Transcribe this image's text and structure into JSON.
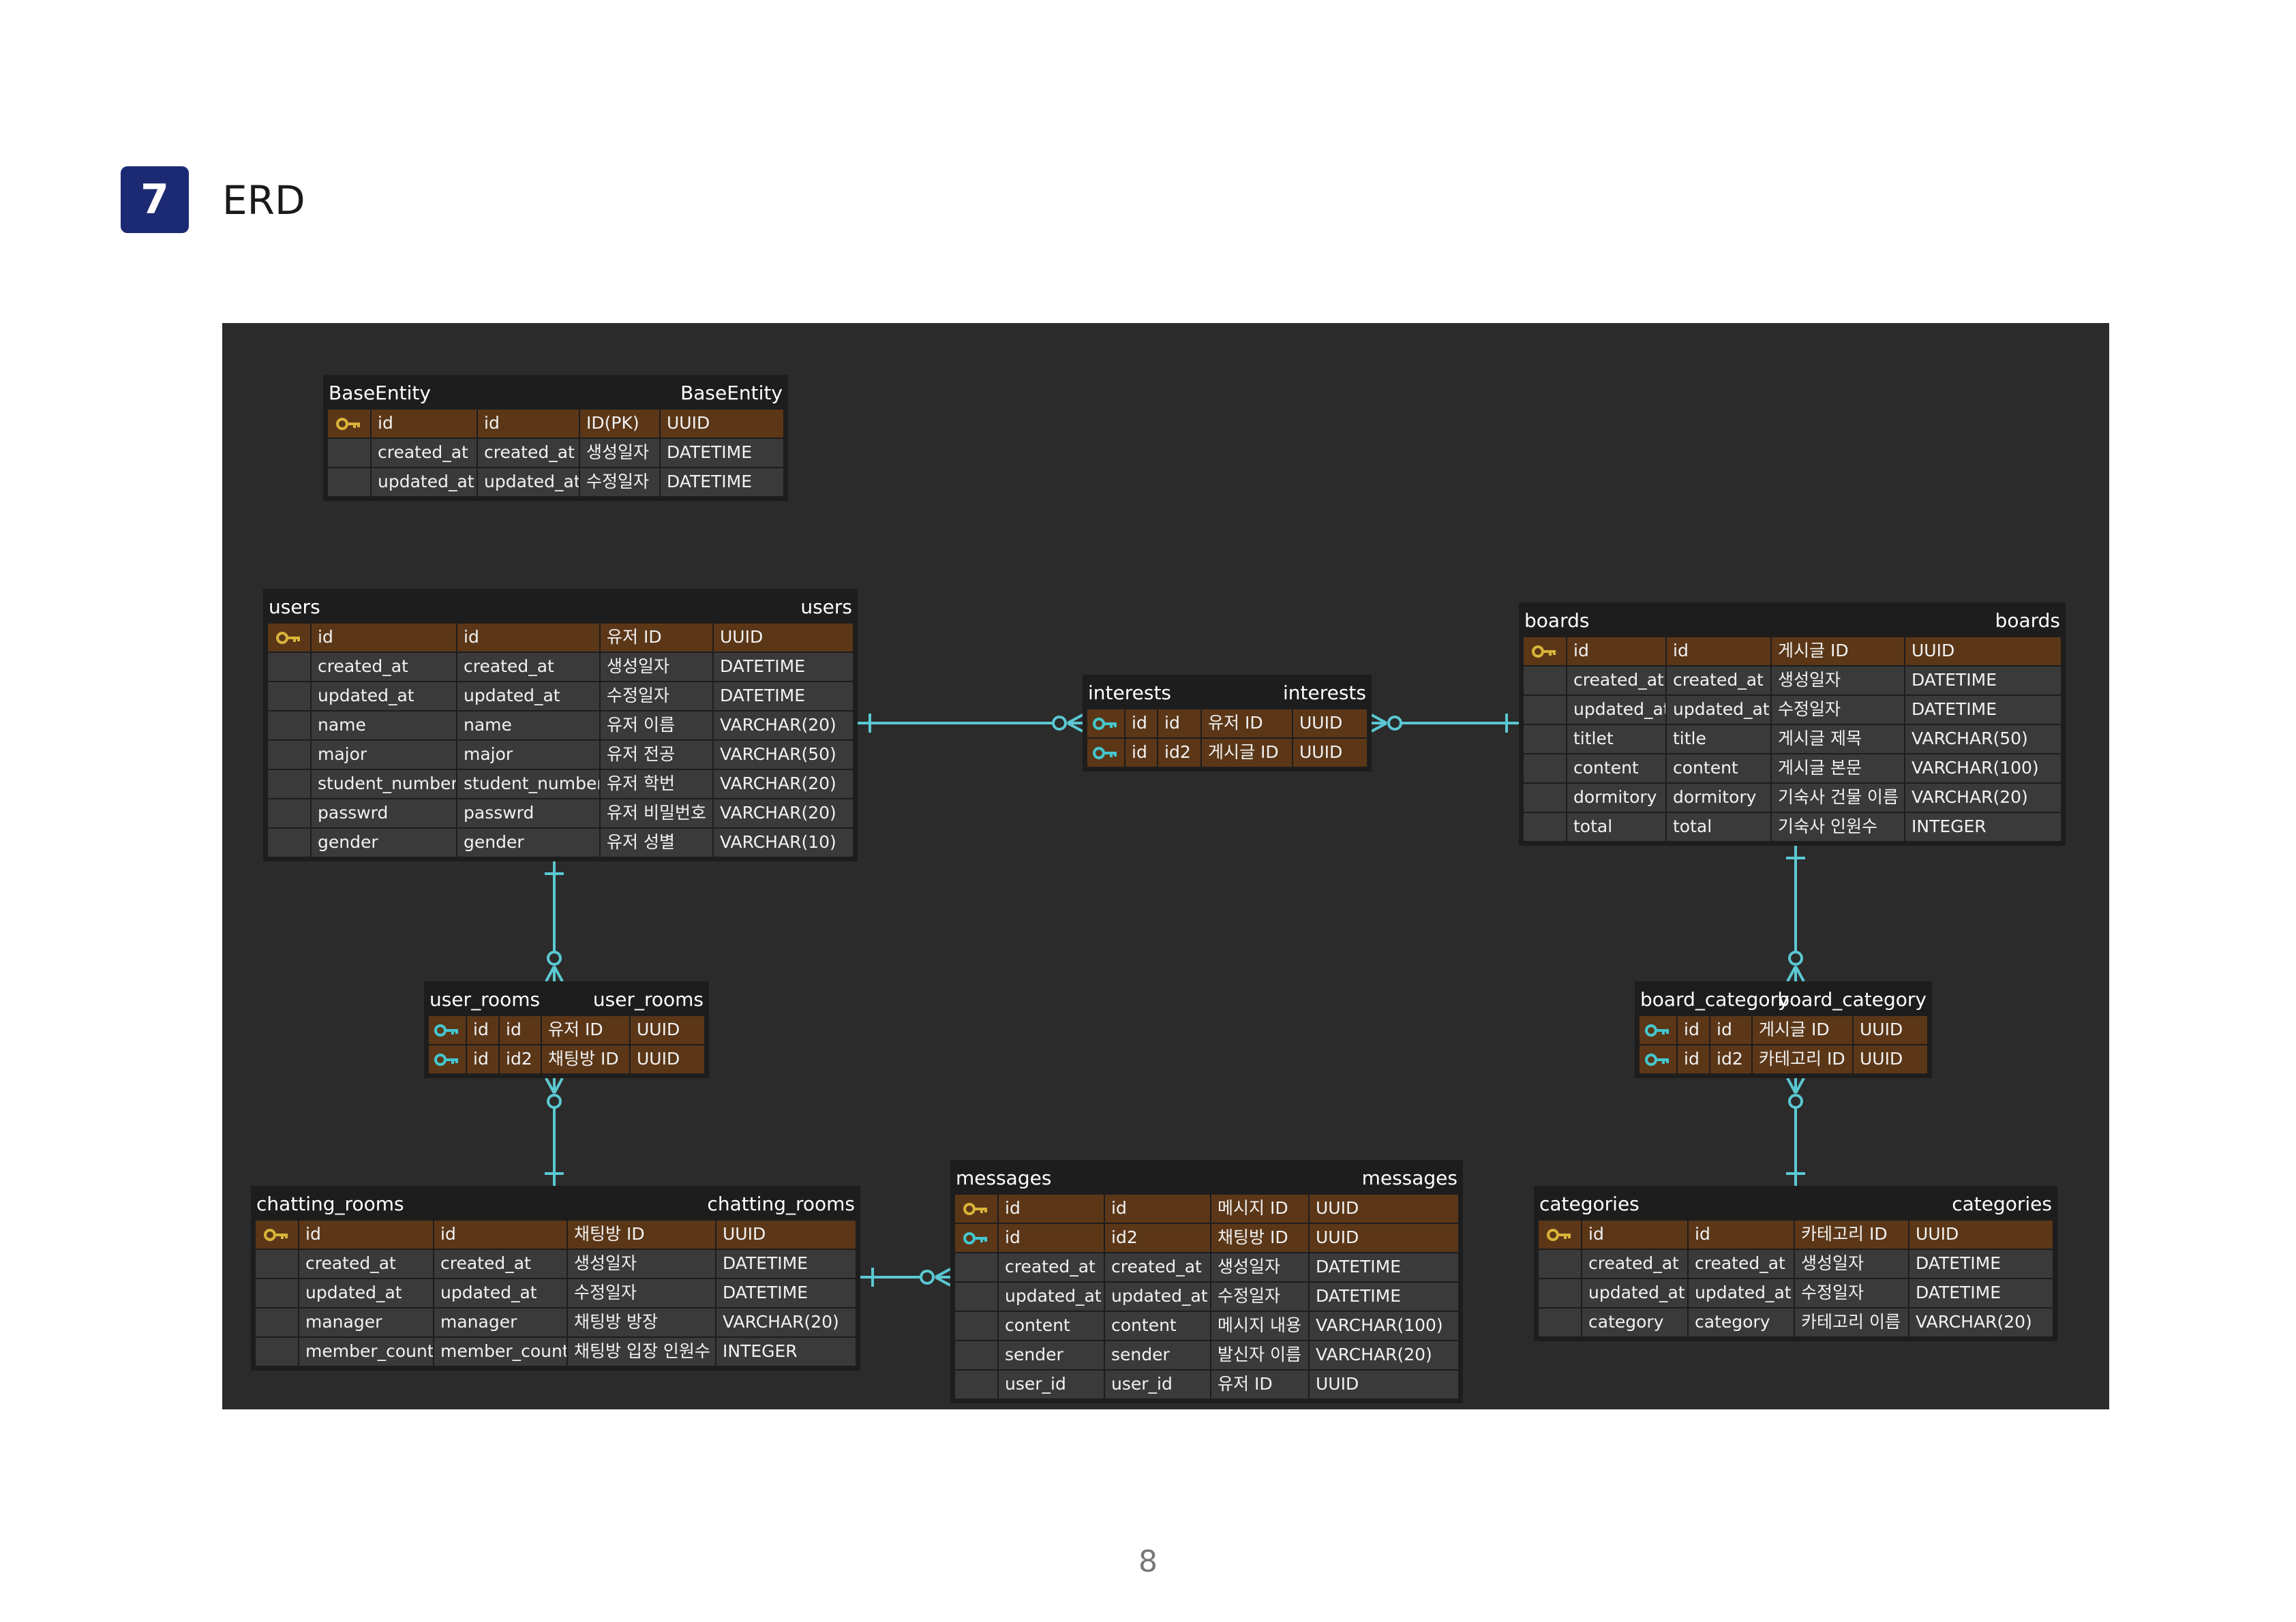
{
  "section": {
    "number": "7",
    "title": "ERD"
  },
  "page_number": "8",
  "colors": {
    "pk_row": "#5b3718",
    "row": "#3a3a3a",
    "canvas": "#2b2b2b",
    "connector": "#5bc8d2",
    "key_primary": "#d9b43a",
    "key_foreign": "#44c7cf",
    "badge": "#1c2a73"
  },
  "icons": {
    "primary_key": "key-icon-gold",
    "foreign_key": "key-icon-teal"
  },
  "tables": [
    {
      "name": "BaseEntity",
      "title_left": "BaseEntity",
      "title_right": "BaseEntity",
      "rows": [
        {
          "key": "primary",
          "cells": [
            "id",
            "id",
            "ID(PK)",
            "UUID"
          ]
        },
        {
          "key": "",
          "cells": [
            "created_at",
            "created_at",
            "생성일자",
            "DATETIME"
          ]
        },
        {
          "key": "",
          "cells": [
            "updated_at",
            "updated_at",
            "수정일자",
            "DATETIME"
          ]
        }
      ]
    },
    {
      "name": "users",
      "title_left": "users",
      "title_right": "users",
      "rows": [
        {
          "key": "primary",
          "cells": [
            "id",
            "id",
            "유저 ID",
            "UUID"
          ]
        },
        {
          "key": "",
          "cells": [
            "created_at",
            "created_at",
            "생성일자",
            "DATETIME"
          ]
        },
        {
          "key": "",
          "cells": [
            "updated_at",
            "updated_at",
            "수정일자",
            "DATETIME"
          ]
        },
        {
          "key": "",
          "cells": [
            "name",
            "name",
            "유저 이름",
            "VARCHAR(20)"
          ]
        },
        {
          "key": "",
          "cells": [
            "major",
            "major",
            "유저 전공",
            "VARCHAR(50)"
          ]
        },
        {
          "key": "",
          "cells": [
            "student_number",
            "student_number",
            "유저 학번",
            "VARCHAR(20)"
          ]
        },
        {
          "key": "",
          "cells": [
            "passwrd",
            "passwrd",
            "유저 비밀번호",
            "VARCHAR(20)"
          ]
        },
        {
          "key": "",
          "cells": [
            "gender",
            "gender",
            "유저 성별",
            "VARCHAR(10)"
          ]
        }
      ]
    },
    {
      "name": "interests",
      "title_left": "interests",
      "title_right": "interests",
      "rows": [
        {
          "key": "foreign",
          "cells": [
            "id",
            "id",
            "유저 ID",
            "UUID"
          ]
        },
        {
          "key": "foreign",
          "cells": [
            "id",
            "id2",
            "게시글 ID",
            "UUID"
          ]
        }
      ]
    },
    {
      "name": "boards",
      "title_left": "boards",
      "title_right": "boards",
      "rows": [
        {
          "key": "primary",
          "cells": [
            "id",
            "id",
            "게시글 ID",
            "UUID"
          ]
        },
        {
          "key": "",
          "cells": [
            "created_at",
            "created_at",
            "생성일자",
            "DATETIME"
          ]
        },
        {
          "key": "",
          "cells": [
            "updated_at",
            "updated_at",
            "수정일자",
            "DATETIME"
          ]
        },
        {
          "key": "",
          "cells": [
            "titlet",
            "title",
            "게시글 제목",
            "VARCHAR(50)"
          ]
        },
        {
          "key": "",
          "cells": [
            "content",
            "content",
            "게시글 본문",
            "VARCHAR(100)"
          ]
        },
        {
          "key": "",
          "cells": [
            "dormitory",
            "dormitory",
            "기숙사 건물 이름",
            "VARCHAR(20)"
          ]
        },
        {
          "key": "",
          "cells": [
            "total",
            "total",
            "기숙사 인원수",
            "INTEGER"
          ]
        }
      ]
    },
    {
      "name": "user_rooms",
      "title_left": "user_rooms",
      "title_right": "user_rooms",
      "rows": [
        {
          "key": "foreign",
          "cells": [
            "id",
            "id",
            "유저 ID",
            "UUID"
          ]
        },
        {
          "key": "foreign",
          "cells": [
            "id",
            "id2",
            "채팅방 ID",
            "UUID"
          ]
        }
      ]
    },
    {
      "name": "board_category",
      "title_left": "board_category",
      "title_right": "board_category",
      "rows": [
        {
          "key": "foreign",
          "cells": [
            "id",
            "id",
            "게시글 ID",
            "UUID"
          ]
        },
        {
          "key": "foreign",
          "cells": [
            "id",
            "id2",
            "카테고리 ID",
            "UUID"
          ]
        }
      ]
    },
    {
      "name": "chatting_rooms",
      "title_left": "chatting_rooms",
      "title_right": "chatting_rooms",
      "rows": [
        {
          "key": "primary",
          "cells": [
            "id",
            "id",
            "채팅방 ID",
            "UUID"
          ]
        },
        {
          "key": "",
          "cells": [
            "created_at",
            "created_at",
            "생성일자",
            "DATETIME"
          ]
        },
        {
          "key": "",
          "cells": [
            "updated_at",
            "updated_at",
            "수정일자",
            "DATETIME"
          ]
        },
        {
          "key": "",
          "cells": [
            "manager",
            "manager",
            "채팅방 방장",
            "VARCHAR(20)"
          ]
        },
        {
          "key": "",
          "cells": [
            "member_count",
            "member_count",
            "채팅방 입장 인원수",
            "INTEGER"
          ]
        }
      ]
    },
    {
      "name": "messages",
      "title_left": "messages",
      "title_right": "messages",
      "rows": [
        {
          "key": "primary",
          "cells": [
            "id",
            "id",
            "메시지 ID",
            "UUID"
          ]
        },
        {
          "key": "foreign",
          "cells": [
            "id",
            "id2",
            "채팅방 ID",
            "UUID"
          ]
        },
        {
          "key": "",
          "cells": [
            "created_at",
            "created_at",
            "생성일자",
            "DATETIME"
          ]
        },
        {
          "key": "",
          "cells": [
            "updated_at",
            "updated_at",
            "수정일자",
            "DATETIME"
          ]
        },
        {
          "key": "",
          "cells": [
            "content",
            "content",
            "메시지 내용",
            "VARCHAR(100)"
          ]
        },
        {
          "key": "",
          "cells": [
            "sender",
            "sender",
            "발신자 이름",
            "VARCHAR(20)"
          ]
        },
        {
          "key": "",
          "cells": [
            "user_id",
            "user_id",
            "유저 ID",
            "UUID"
          ]
        }
      ]
    },
    {
      "name": "categories",
      "title_left": "categories",
      "title_right": "categories",
      "rows": [
        {
          "key": "primary",
          "cells": [
            "id",
            "id",
            "카테고리 ID",
            "UUID"
          ]
        },
        {
          "key": "",
          "cells": [
            "created_at",
            "created_at",
            "생성일자",
            "DATETIME"
          ]
        },
        {
          "key": "",
          "cells": [
            "updated_at",
            "updated_at",
            "수정일자",
            "DATETIME"
          ]
        },
        {
          "key": "",
          "cells": [
            "category",
            "category",
            "카테고리 이름",
            "VARCHAR(20)"
          ]
        }
      ]
    }
  ],
  "relationships": [
    {
      "from": "users",
      "to": "interests",
      "from_end": "one",
      "to_end": "zero-or-many"
    },
    {
      "from": "boards",
      "to": "interests",
      "from_end": "one",
      "to_end": "zero-or-many"
    },
    {
      "from": "users",
      "to": "user_rooms",
      "from_end": "one",
      "to_end": "zero-or-many"
    },
    {
      "from": "chatting_rooms",
      "to": "user_rooms",
      "from_end": "one",
      "to_end": "zero-or-many"
    },
    {
      "from": "boards",
      "to": "board_category",
      "from_end": "one",
      "to_end": "zero-or-many"
    },
    {
      "from": "categories",
      "to": "board_category",
      "from_end": "one",
      "to_end": "zero-or-many"
    },
    {
      "from": "chatting_rooms",
      "to": "messages",
      "from_end": "one",
      "to_end": "zero-or-many"
    }
  ]
}
